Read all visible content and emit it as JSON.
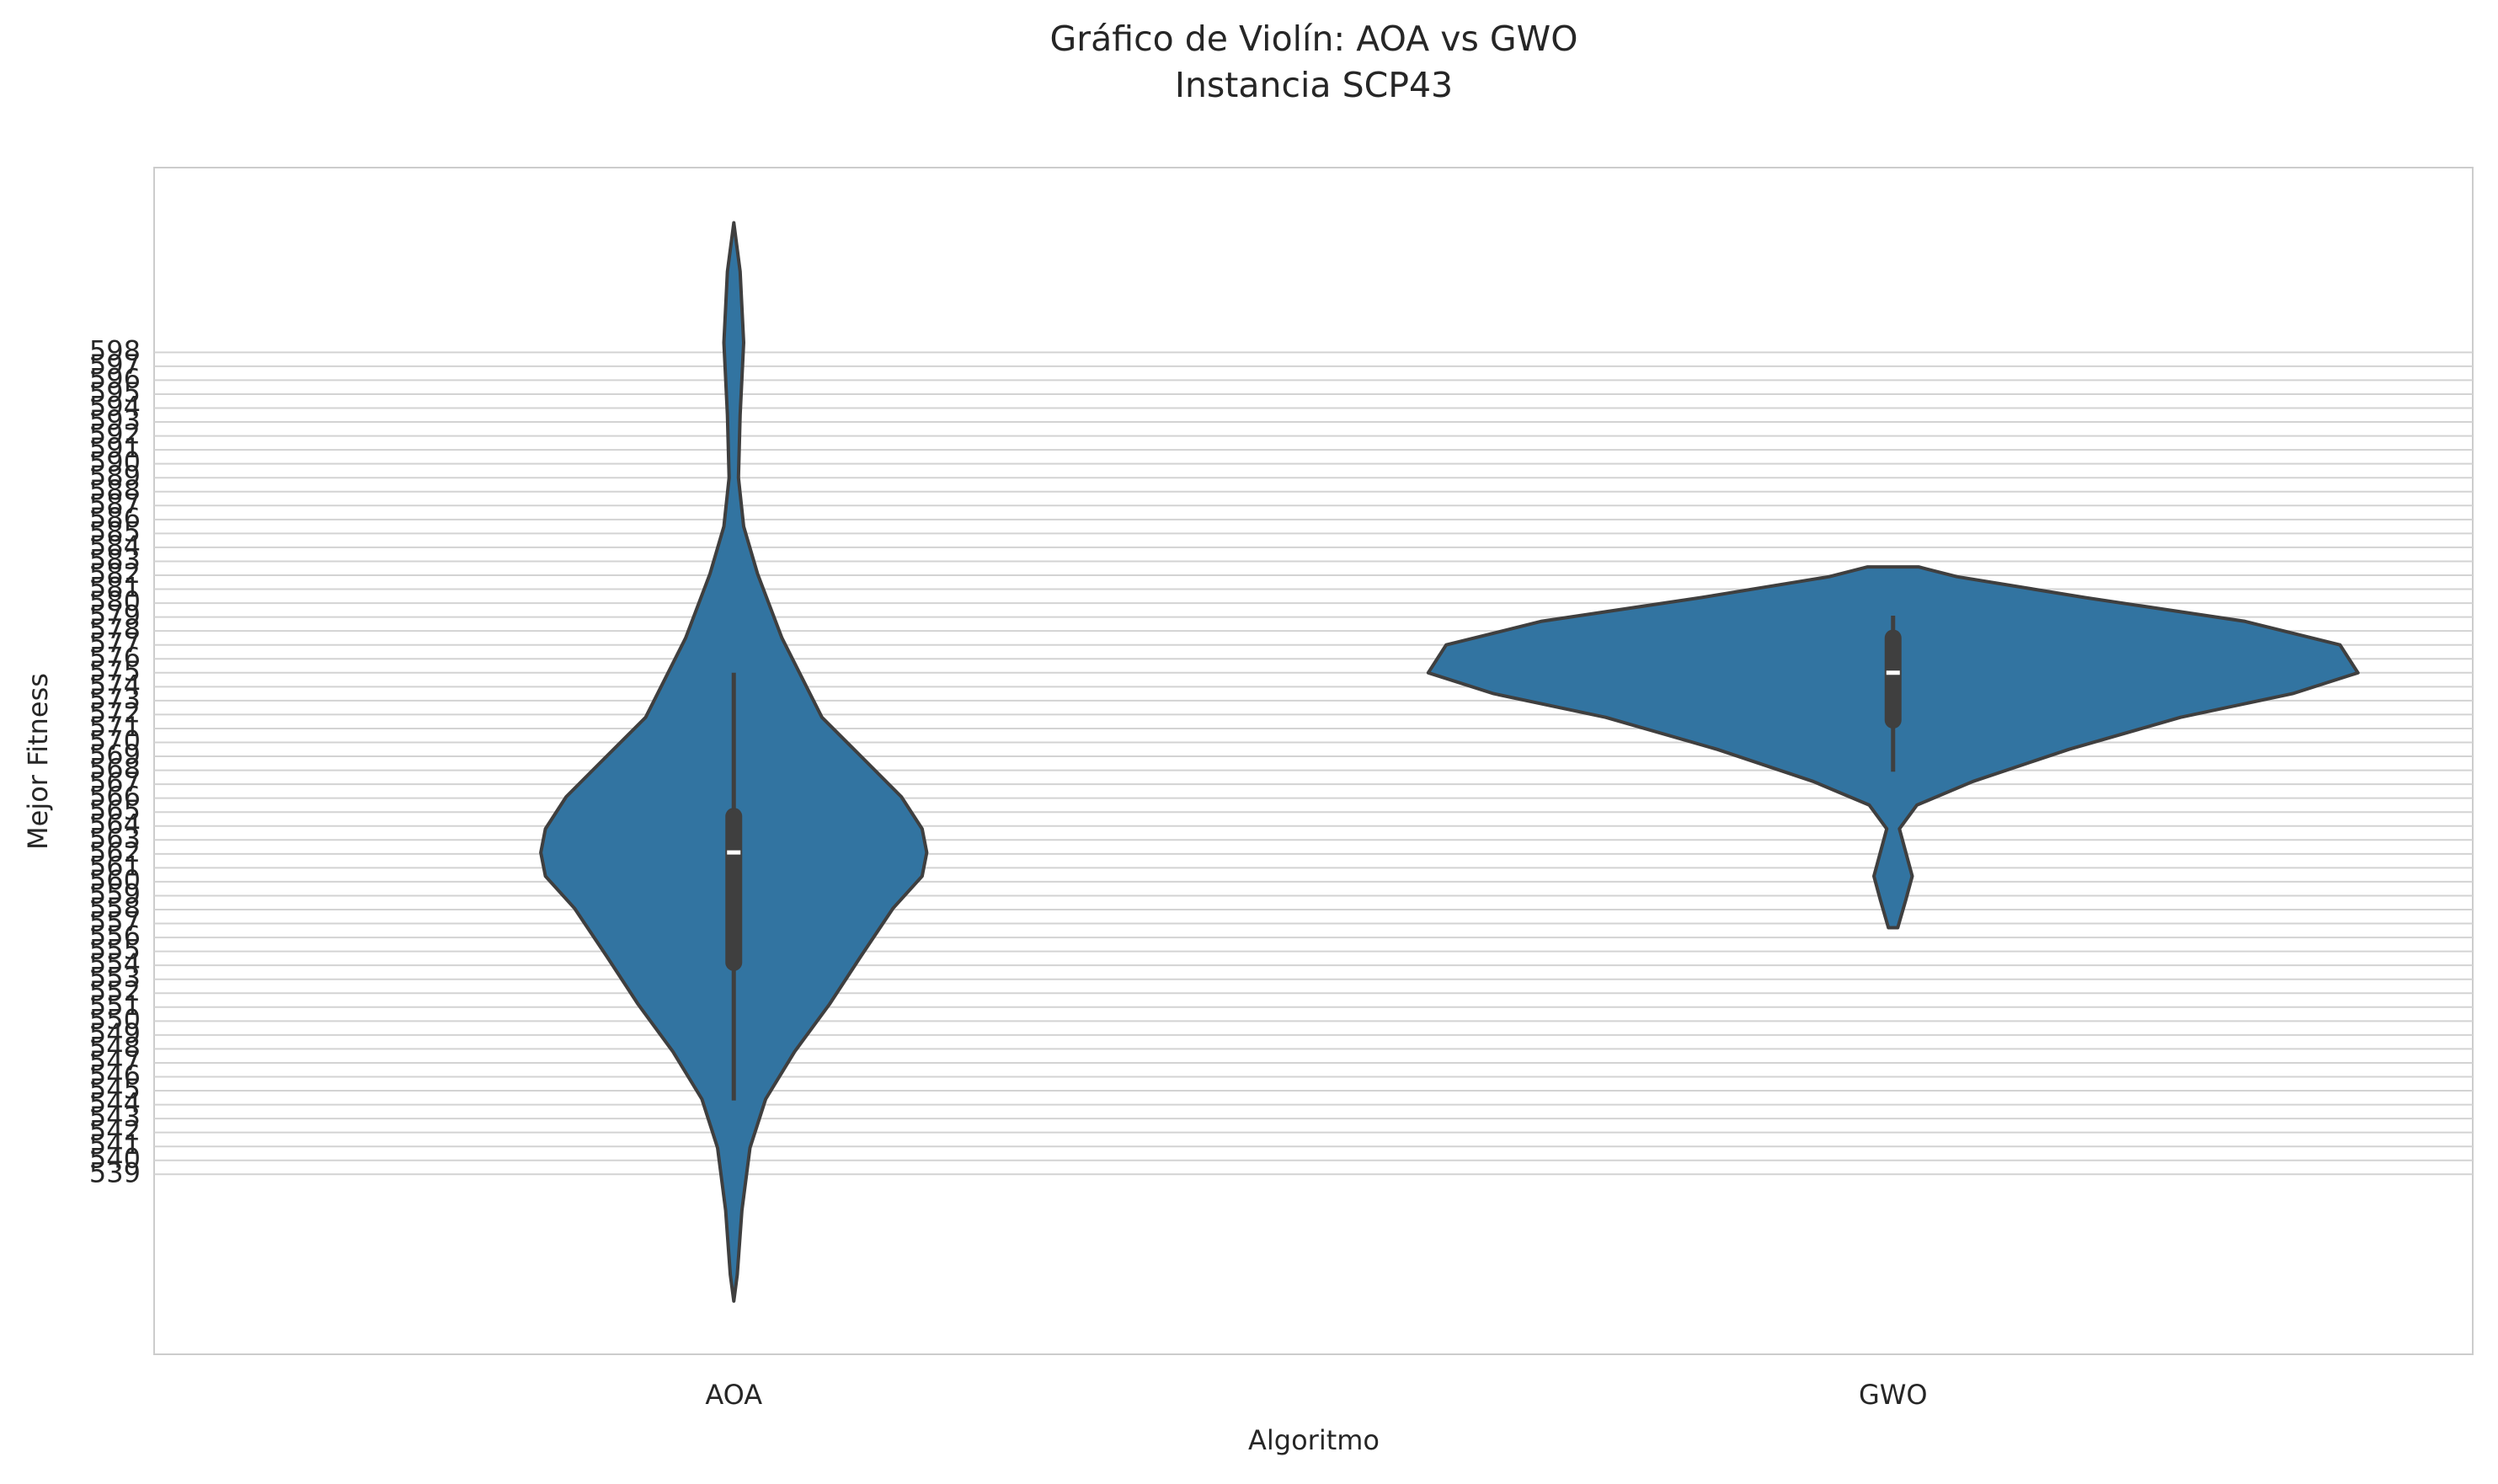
{
  "chart_data": {
    "type": "violin",
    "title": "Gráfico de Violín: AOA vs GWO",
    "subtitle": "Instancia SCP43",
    "x_label": "Algoritmo",
    "y_label": "Mejor Fitness",
    "categories": [
      "AOA",
      "GWO"
    ],
    "color": "#3274a1",
    "grid": true,
    "ylim": [
      526.08,
      611.26
    ],
    "yticks": [
      539,
      540,
      541,
      542,
      543,
      544,
      545,
      546,
      547,
      548,
      549,
      550,
      551,
      552,
      553,
      554,
      555,
      556,
      557,
      558,
      559,
      560,
      561,
      562,
      563,
      564,
      565,
      566,
      567,
      568,
      569,
      570,
      571,
      572,
      573,
      574,
      575,
      576,
      577,
      578,
      579,
      580,
      581,
      582,
      583,
      584,
      585,
      586,
      587,
      588,
      589,
      590,
      591,
      592,
      593,
      594,
      595,
      596,
      597,
      598
    ],
    "violins": [
      {
        "kde_y": [
          607.3,
          603.8,
          598.7,
          593.5,
          589.0,
          585.5,
          582.1,
          577.5,
          571.8,
          568.4,
          566.1,
          563.8,
          562.1,
          560.4,
          558.1,
          554.7,
          551.2,
          547.8,
          544.4,
          540.9,
          536.4,
          531.8,
          529.9
        ],
        "kde_width": [
          0,
          0.011,
          0.017,
          0.011,
          0.008,
          0.017,
          0.041,
          0.083,
          0.152,
          0.234,
          0.289,
          0.325,
          0.333,
          0.325,
          0.275,
          0.22,
          0.165,
          0.105,
          0.055,
          0.028,
          0.014,
          0.006,
          0
        ],
        "whisker_low": 544.3,
        "q1": 554.2,
        "median": 562.1,
        "q3": 564.7,
        "whisker_high": 575.0
      },
      {
        "kde_y": [
          582.6,
          581.9,
          580.4,
          578.7,
          577.0,
          575.0,
          573.5,
          571.8,
          569.5,
          567.2,
          565.5,
          563.8,
          562.1,
          560.4,
          558.7,
          556.7
        ],
        "kde_width": [
          0.044,
          0.11,
          0.331,
          0.606,
          0.771,
          0.802,
          0.689,
          0.496,
          0.303,
          0.138,
          0.041,
          0.011,
          0.022,
          0.033,
          0.022,
          0.008
        ],
        "whisker_low": 567.9,
        "q1": 571.6,
        "median": 575.0,
        "q3": 577.5,
        "whisker_high": 579.1
      }
    ]
  }
}
